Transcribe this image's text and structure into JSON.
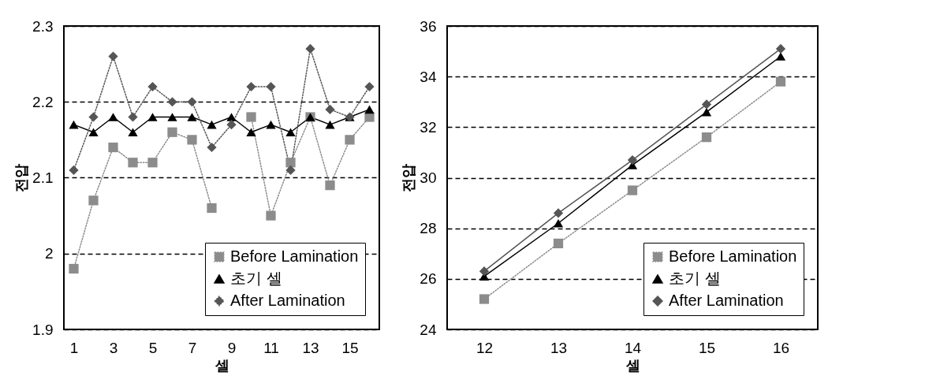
{
  "chart_data": [
    {
      "type": "line",
      "xlabel": "셀",
      "ylabel": "전압",
      "x": [
        1,
        2,
        3,
        4,
        5,
        6,
        7,
        8,
        9,
        10,
        11,
        12,
        13,
        14,
        15,
        16
      ],
      "xlim": [
        0.5,
        16.5
      ],
      "xticks": [
        1,
        3,
        5,
        7,
        9,
        11,
        13,
        15
      ],
      "ylim": [
        1.9,
        2.3
      ],
      "yticks": [
        1.9,
        {
          "value": 2,
          "label": "2"
        },
        2.1,
        2.2,
        2.3
      ],
      "grid": "y",
      "legend": "bottom right",
      "series": [
        {
          "name": "Before Lamination",
          "color": "#8c8c8c",
          "marker": "square",
          "line_style": "dotted",
          "values": [
            1.98,
            2.07,
            2.14,
            2.12,
            2.12,
            2.16,
            2.15,
            2.06,
            null,
            2.18,
            2.05,
            2.12,
            2.18,
            2.09,
            2.15,
            2.18
          ]
        },
        {
          "name": "초기 셀",
          "color": "#000000",
          "marker": "triangle",
          "line_style": "solid",
          "values": [
            2.17,
            2.16,
            2.18,
            2.16,
            2.18,
            2.18,
            2.18,
            2.17,
            2.18,
            2.16,
            2.17,
            2.16,
            2.18,
            2.17,
            2.18,
            2.19
          ]
        },
        {
          "name": "After Lamination",
          "color": "#555555",
          "marker": "diamond",
          "line_style": "dotted",
          "values": [
            2.11,
            2.18,
            2.26,
            2.18,
            2.22,
            2.2,
            2.2,
            2.14,
            2.17,
            2.22,
            2.22,
            2.11,
            2.27,
            2.19,
            2.18,
            2.22
          ]
        }
      ]
    },
    {
      "type": "line",
      "xlabel": "셀",
      "ylabel": "전압",
      "x": [
        12,
        13,
        14,
        15,
        16
      ],
      "xlim": [
        11.5,
        16.5
      ],
      "xticks": [
        12,
        13,
        14,
        15,
        16
      ],
      "ylim": [
        24,
        36
      ],
      "yticks": [
        24,
        26,
        28,
        30,
        32,
        34,
        36
      ],
      "grid": "y",
      "legend": "bottom right",
      "series": [
        {
          "name": "Before Lamination",
          "color": "#8c8c8c",
          "marker": "square",
          "line_style": "dotted",
          "values": [
            25.2,
            27.4,
            29.5,
            31.6,
            33.8
          ]
        },
        {
          "name": "초기 셀",
          "color": "#000000",
          "marker": "triangle",
          "line_style": "solid",
          "values": [
            26.1,
            28.2,
            30.5,
            32.6,
            34.8
          ]
        },
        {
          "name": "After Lamination",
          "color": "#555555",
          "marker": "diamond",
          "line_style": "solid",
          "values": [
            26.3,
            28.6,
            30.7,
            32.9,
            35.1
          ]
        }
      ]
    }
  ]
}
